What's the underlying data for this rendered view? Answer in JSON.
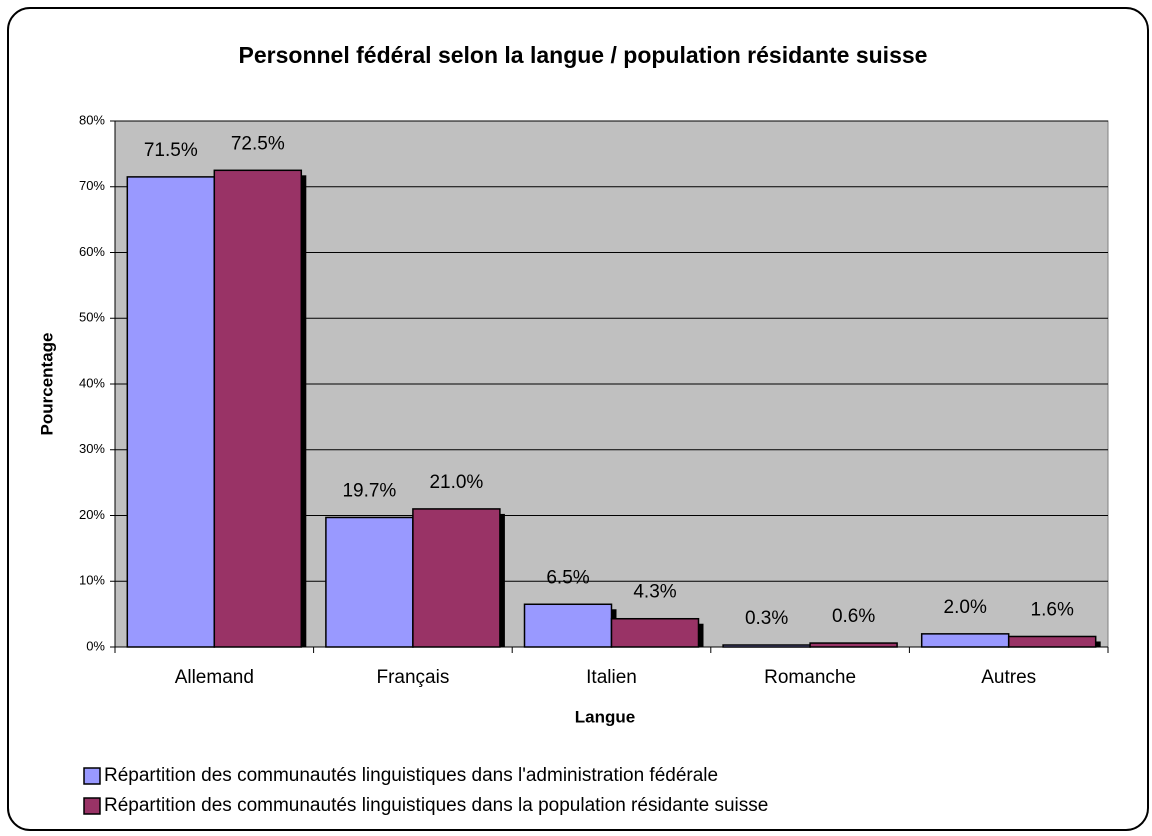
{
  "chart_data": {
    "type": "bar",
    "title": "Personnel fédéral selon la langue / population résidante suisse",
    "x_label": "Langue",
    "y_label": "Pourcentage",
    "categories": [
      "Allemand",
      "Français",
      "Italien",
      "Romanche",
      "Autres"
    ],
    "series": [
      {
        "name": "Répartition des communautés linguistiques dans l'administration fédérale",
        "color": "#9999ff",
        "values": [
          71.5,
          19.7,
          6.5,
          0.3,
          2.0
        ],
        "value_labels": [
          "71.5%",
          "19.7%",
          "6.5%",
          "0.3%",
          "2.0%"
        ]
      },
      {
        "name": "Répartition des communautés linguistiques dans la population résidante suisse",
        "color": "#993366",
        "values": [
          72.5,
          21.0,
          4.3,
          0.6,
          1.6
        ],
        "value_labels": [
          "72.5%",
          "21.0%",
          "4.3%",
          "0.6%",
          "1.6%"
        ]
      }
    ],
    "ylim": [
      0,
      80
    ],
    "yticks": [
      {
        "value": 0,
        "label": "0%"
      },
      {
        "value": 10,
        "label": "10%"
      },
      {
        "value": 20,
        "label": "20%"
      },
      {
        "value": 30,
        "label": "30%"
      },
      {
        "value": 40,
        "label": "40%"
      },
      {
        "value": 50,
        "label": "50%"
      },
      {
        "value": 60,
        "label": "60%"
      },
      {
        "value": 70,
        "label": "70%"
      },
      {
        "value": 80,
        "label": "80%"
      }
    ],
    "grid": true,
    "plot_background": "#c0c0c0",
    "legend": "bottom left"
  }
}
